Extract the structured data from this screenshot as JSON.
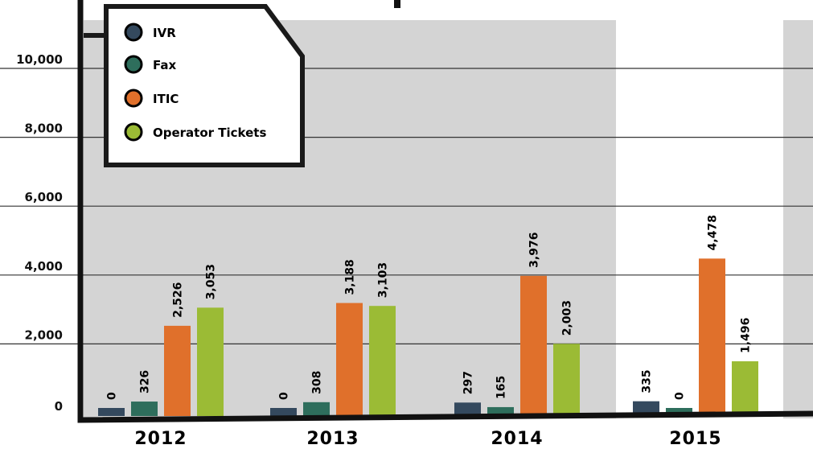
{
  "chart_data": {
    "type": "bar",
    "categories": [
      "2012",
      "2013",
      "2014",
      "2015"
    ],
    "series": [
      {
        "name": "IVR",
        "color": "#34495e",
        "values": [
          0,
          0,
          297,
          335
        ],
        "labels": [
          "0",
          "0",
          "297",
          "335"
        ]
      },
      {
        "name": "Fax",
        "color": "#2e6e5c",
        "values": [
          326,
          308,
          165,
          0
        ],
        "labels": [
          "326",
          "308",
          "165",
          "0"
        ]
      },
      {
        "name": "ITIC",
        "color": "#e0702b",
        "values": [
          2526,
          3188,
          3976,
          4478
        ],
        "labels": [
          "2,526",
          "3,188",
          "3,976",
          "4,478"
        ]
      },
      {
        "name": "Operator Tickets",
        "color": "#9bbb35",
        "values": [
          3053,
          3103,
          2003,
          1496
        ],
        "labels": [
          "3,053",
          "3,103",
          "2,003",
          "1,496"
        ]
      }
    ],
    "y_ticks": [
      {
        "value": 0,
        "label": "0"
      },
      {
        "value": 2000,
        "label": "2,000"
      },
      {
        "value": 4000,
        "label": "4,000"
      },
      {
        "value": 6000,
        "label": "6,000"
      },
      {
        "value": 8000,
        "label": "8,000"
      },
      {
        "value": 10000,
        "label": "10,000"
      }
    ],
    "ylim": [
      0,
      10000
    ],
    "grid": true,
    "legend_position": "top-left",
    "colors": {
      "panel": "#d4d4d4",
      "axis": "#111111",
      "gridline": "#333333"
    }
  }
}
